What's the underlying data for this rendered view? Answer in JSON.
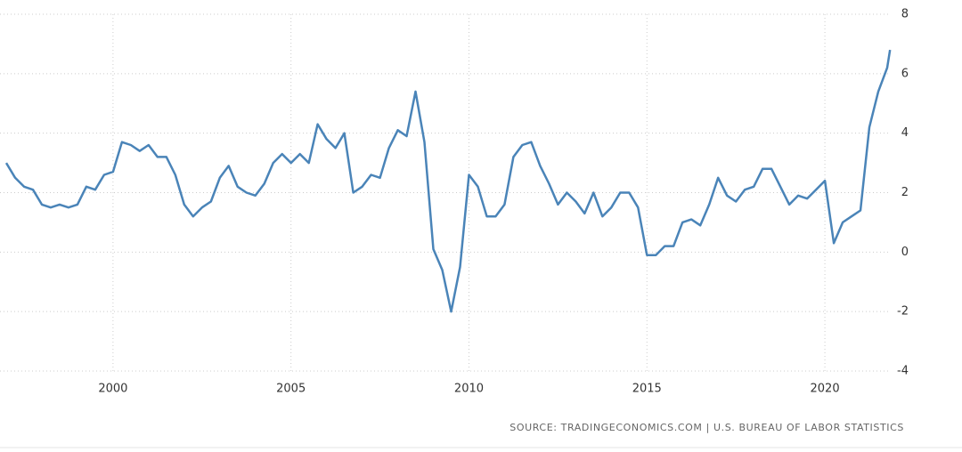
{
  "chart_data": {
    "type": "line",
    "source": "SOURCE: TRADINGECONOMICS.COM | U.S. BUREAU OF LABOR STATISTICS",
    "x": [
      1997.0,
      1997.25,
      1997.5,
      1997.75,
      1998.0,
      1998.25,
      1998.5,
      1998.75,
      1999.0,
      1999.25,
      1999.5,
      1999.75,
      2000.0,
      2000.25,
      2000.5,
      2000.75,
      2001.0,
      2001.25,
      2001.5,
      2001.75,
      2002.0,
      2002.25,
      2002.5,
      2002.75,
      2003.0,
      2003.25,
      2003.5,
      2003.75,
      2004.0,
      2004.25,
      2004.5,
      2004.75,
      2005.0,
      2005.25,
      2005.5,
      2005.75,
      2006.0,
      2006.25,
      2006.5,
      2006.75,
      2007.0,
      2007.25,
      2007.5,
      2007.75,
      2008.0,
      2008.25,
      2008.5,
      2008.75,
      2009.0,
      2009.25,
      2009.5,
      2009.75,
      2010.0,
      2010.25,
      2010.5,
      2010.75,
      2011.0,
      2011.25,
      2011.5,
      2011.75,
      2012.0,
      2012.25,
      2012.5,
      2012.75,
      2013.0,
      2013.25,
      2013.5,
      2013.75,
      2014.0,
      2014.25,
      2014.5,
      2014.75,
      2015.0,
      2015.25,
      2015.5,
      2015.75,
      2016.0,
      2016.25,
      2016.5,
      2016.75,
      2017.0,
      2017.25,
      2017.5,
      2017.75,
      2018.0,
      2018.25,
      2018.5,
      2018.75,
      2019.0,
      2019.25,
      2019.5,
      2019.75,
      2020.0,
      2020.25,
      2020.5,
      2020.75,
      2021.0,
      2021.25,
      2021.5,
      2021.75,
      2021.83
    ],
    "series": [
      {
        "color": "#4a84b8",
        "values": [
          3.0,
          2.5,
          2.2,
          2.1,
          1.6,
          1.5,
          1.6,
          1.5,
          1.6,
          2.2,
          2.1,
          2.6,
          2.7,
          3.7,
          3.6,
          3.4,
          3.6,
          3.2,
          3.2,
          2.6,
          1.6,
          1.2,
          1.5,
          1.7,
          2.5,
          2.9,
          2.2,
          2.0,
          1.9,
          2.3,
          3.0,
          3.3,
          3.0,
          3.3,
          3.0,
          4.3,
          3.8,
          3.5,
          4.0,
          2.0,
          2.2,
          2.6,
          2.5,
          3.5,
          4.1,
          3.9,
          5.4,
          3.7,
          0.1,
          -0.6,
          -2.0,
          -0.5,
          2.6,
          2.2,
          1.2,
          1.2,
          1.6,
          3.2,
          3.6,
          3.7,
          2.9,
          2.3,
          1.6,
          2.0,
          1.7,
          1.3,
          2.0,
          1.2,
          1.5,
          2.0,
          2.0,
          1.5,
          -0.1,
          -0.1,
          0.2,
          0.2,
          1.0,
          1.1,
          0.9,
          1.6,
          2.5,
          1.9,
          1.7,
          2.1,
          2.2,
          2.8,
          2.8,
          2.2,
          1.6,
          1.9,
          1.8,
          2.1,
          2.4,
          0.3,
          1.0,
          1.2,
          1.4,
          4.2,
          5.4,
          6.2,
          6.8
        ]
      }
    ],
    "xlim": [
      1997,
      2021.85
    ],
    "xticks": [
      2000,
      2005,
      2010,
      2015,
      2020
    ],
    "ylim": [
      -4,
      8
    ],
    "yticks": [
      -4,
      -2,
      0,
      2,
      4,
      6,
      8
    ],
    "grid": true
  }
}
